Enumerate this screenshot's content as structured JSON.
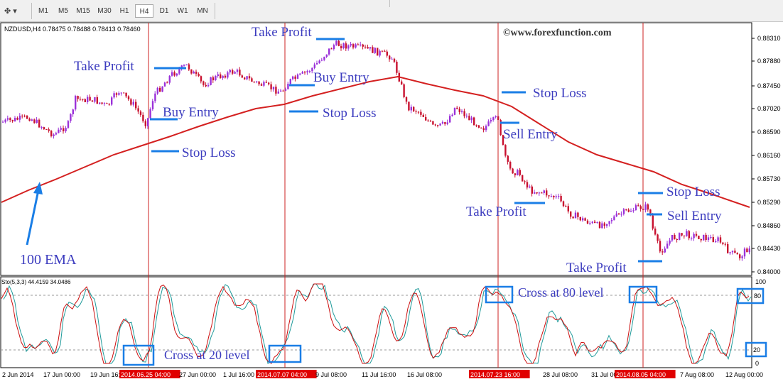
{
  "toolbar": {
    "timeframes": [
      {
        "label": "M1",
        "active": false
      },
      {
        "label": "M5",
        "active": false
      },
      {
        "label": "M15",
        "active": false
      },
      {
        "label": "M30",
        "active": false
      },
      {
        "label": "H1",
        "active": false
      },
      {
        "label": "H4",
        "active": true
      },
      {
        "label": "D1",
        "active": false
      },
      {
        "label": "W1",
        "active": false
      },
      {
        "label": "MN",
        "active": false
      }
    ],
    "tool_icon": "line-tool-icon"
  },
  "chart_info": "NZDUSD,H4  0.78475 0.78488 0.78413 0.78460",
  "watermark": "©www.forexfunction.com",
  "indicator_info": "Sto(5,3,3) 44.4159 34.0486",
  "colors": {
    "bull": "#9b30d9",
    "bear": "#c8102e",
    "ema": "#d42020",
    "main_line": "#cc1010",
    "signal_line": "#1e9a9a",
    "annotation": "#3c3cbf",
    "marker": "#1a7ee6",
    "vline": "#cc2020"
  },
  "chart_data": {
    "type": "candlestick",
    "price_axis": {
      "ticks": [
        "0.88310",
        "0.87880",
        "0.87450",
        "0.87020",
        "0.86590",
        "0.86160",
        "0.85730",
        "0.85290",
        "0.84860",
        "0.84430",
        "0.84000"
      ],
      "range": [
        0.84,
        0.884
      ]
    },
    "indicator_axis": {
      "ticks": [
        "100",
        "80",
        "20",
        "0"
      ],
      "levels": [
        80,
        20
      ]
    },
    "time_labels": [
      "2 Jun 2014",
      "17 Jun 00:00",
      "19 Jun 16:00",
      "2014.06.25 04:00",
      "27 Jun 00:00",
      "1 Jul 16:00",
      "2014.07.07 04:00",
      "9 Jul 08:00",
      "11 Jul 16:00",
      "16 Jul 08:00",
      "2014.07.23 16:00",
      "28 Jul 08:00",
      "31 Jul 00:00",
      "2014.08.05 04:00",
      "7 Aug 08:00",
      "12 Aug 00:00"
    ],
    "highlighted_times": [
      "2014.06.25 04:00",
      "2014.07.07 04:00",
      "2014.07.23 16:00",
      "2014.08.05 04:00"
    ],
    "ema_label": "100 EMA"
  },
  "annotations": {
    "take_profit": "Take Profit",
    "buy_entry": "Buy Entry",
    "sell_entry": "Sell Entry",
    "stop_loss": "Stop Loss",
    "cross20": "Cross at 20 level",
    "cross80": "Cross at 80 level",
    "ema": "100 EMA",
    "box80": "80",
    "box20": "20"
  }
}
